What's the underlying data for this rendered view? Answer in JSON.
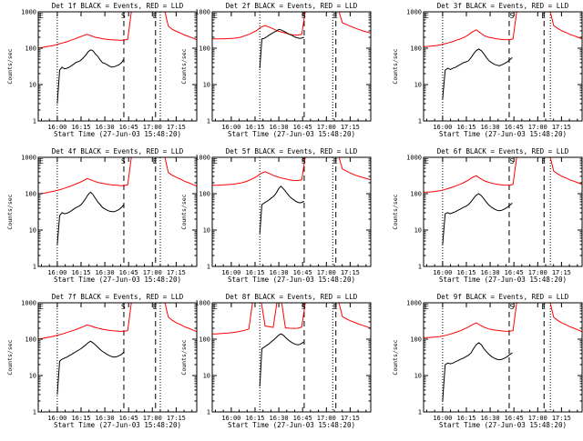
{
  "chart_data": {
    "type": "line",
    "layout": "3x3 grid of line plots",
    "yscale": "log",
    "ylim": [
      1,
      1000
    ],
    "yticks": [
      "1",
      "10",
      "100",
      "1000"
    ],
    "xticks": [
      "16:00",
      "16:15",
      "16:30",
      "16:45",
      "17:00",
      "17:15"
    ],
    "xtick_minutes": [
      0,
      15,
      30,
      45,
      60,
      75
    ],
    "xlim_minutes": [
      -12,
      88
    ],
    "ylabel": "Counts/sec",
    "xlabel": "Start Time (27-Jun-03 15:48:20)",
    "series_names": [
      "Events",
      "LLD"
    ],
    "colors": {
      "events": "#000000",
      "lld": "#ff0000",
      "lines": "#000000"
    },
    "markers": {
      "eclipse": "E",
      "saa": "S"
    },
    "panels": [
      {
        "title": "Det 1f BLACK = Events, RED = LLD",
        "dotted_minutes": [
          0,
          65
        ],
        "dashed_minutes": [
          42,
          62
        ],
        "marker_minutes": {
          "eclipse": -12,
          "saa": 42,
          "eclipse_end": 62
        },
        "events": {
          "start": 0,
          "end": 42,
          "values": [
            3,
            25,
            30,
            27,
            28,
            30,
            33,
            37,
            41,
            43,
            47,
            55,
            65,
            80,
            90,
            85,
            70,
            60,
            48,
            40,
            38,
            35,
            32,
            30,
            31,
            33,
            35,
            40,
            50
          ]
        },
        "lld": {
          "start": -12,
          "end": 88,
          "values": [
            100,
            105,
            110,
            115,
            120,
            130,
            140,
            150,
            165,
            180,
            200,
            220,
            240,
            220,
            200,
            190,
            180,
            175,
            170,
            168,
            166,
            165,
            175,
            1200,
            1200,
            1200,
            1200,
            1200,
            1200,
            1200,
            1200,
            1200,
            400,
            330,
            290,
            260,
            230,
            210,
            190,
            170
          ]
        }
      },
      {
        "title": "Det 2f BLACK = Events, RED = LLD",
        "dotted_minutes": [
          18,
          64
        ],
        "dashed_minutes": [
          46,
          66
        ],
        "marker_minutes": {
          "eclipse": -12,
          "saa": 46,
          "eclipse_end": 66
        },
        "events": {
          "start": 18,
          "end": 46,
          "values": [
            28,
            180,
            185,
            200,
            220,
            240,
            260,
            280,
            300,
            330,
            320,
            300,
            280,
            260,
            240,
            230,
            210,
            200,
            190,
            185,
            190,
            200
          ]
        },
        "lld": {
          "start": -12,
          "end": 88,
          "values": [
            180,
            180,
            180,
            182,
            184,
            186,
            190,
            200,
            220,
            240,
            270,
            310,
            380,
            420,
            380,
            340,
            300,
            280,
            260,
            240,
            230,
            230,
            240,
            1200,
            1200,
            1200,
            1200,
            1200,
            1200,
            1200,
            1200,
            1200,
            500,
            450,
            400,
            360,
            330,
            300,
            280,
            260
          ]
        }
      },
      {
        "title": "Det 3f BLACK = Events, RED = LLD",
        "dotted_minutes": [
          0,
          68
        ],
        "dashed_minutes": [
          42,
          64
        ],
        "marker_minutes": {
          "eclipse": -12,
          "saa": 44,
          "eclipse_end": 64
        },
        "events": {
          "start": 0,
          "end": 44,
          "values": [
            4,
            25,
            28,
            26,
            28,
            30,
            33,
            36,
            40,
            42,
            45,
            55,
            70,
            85,
            95,
            85,
            70,
            55,
            45,
            40,
            36,
            34,
            33,
            35,
            38,
            42,
            48,
            55
          ]
        },
        "lld": {
          "start": -12,
          "end": 88,
          "values": [
            110,
            112,
            115,
            118,
            122,
            130,
            140,
            150,
            165,
            180,
            200,
            230,
            280,
            320,
            260,
            220,
            200,
            190,
            180,
            175,
            172,
            170,
            180,
            1200,
            1200,
            1200,
            1200,
            1200,
            1200,
            1200,
            1200,
            1200,
            420,
            350,
            300,
            270,
            240,
            220,
            200,
            180
          ]
        }
      },
      {
        "title": "Det 4f BLACK = Events, RED = LLD",
        "dotted_minutes": [
          0,
          65
        ],
        "dashed_minutes": [
          42,
          62
        ],
        "marker_minutes": {
          "eclipse": -12,
          "saa": 42,
          "eclipse_end": 62
        },
        "events": {
          "start": 0,
          "end": 42,
          "values": [
            4,
            25,
            30,
            28,
            29,
            31,
            34,
            38,
            42,
            45,
            50,
            60,
            75,
            95,
            110,
            95,
            75,
            60,
            50,
            42,
            38,
            35,
            33,
            32,
            32,
            34,
            37,
            42,
            50
          ]
        },
        "lld": {
          "start": -12,
          "end": 88,
          "values": [
            100,
            102,
            106,
            112,
            118,
            126,
            136,
            148,
            162,
            180,
            200,
            225,
            260,
            240,
            215,
            200,
            190,
            182,
            176,
            172,
            168,
            166,
            175,
            1200,
            1200,
            1200,
            1200,
            1200,
            1200,
            1200,
            1200,
            1200,
            380,
            320,
            280,
            250,
            220,
            200,
            180,
            160
          ]
        }
      },
      {
        "title": "Det 5f BLACK = Events, RED = LLD",
        "dotted_minutes": [
          18,
          64
        ],
        "dashed_minutes": [
          46,
          66
        ],
        "marker_minutes": {
          "eclipse": -12,
          "saa": 46,
          "eclipse_end": 66
        },
        "events": {
          "start": 18,
          "end": 46,
          "values": [
            8,
            50,
            55,
            60,
            65,
            72,
            80,
            90,
            110,
            140,
            160,
            140,
            120,
            100,
            85,
            75,
            68,
            62,
            58,
            56,
            58,
            62
          ]
        },
        "lld": {
          "start": -12,
          "end": 88,
          "values": [
            170,
            170,
            172,
            175,
            178,
            182,
            188,
            196,
            210,
            230,
            260,
            300,
            360,
            400,
            360,
            320,
            290,
            270,
            255,
            240,
            232,
            230,
            240,
            1200,
            1200,
            1200,
            1200,
            1200,
            1200,
            1200,
            1200,
            1200,
            480,
            420,
            370,
            330,
            300,
            280,
            260,
            240
          ]
        }
      },
      {
        "title": "Det 6f BLACK = Events, RED = LLD",
        "dotted_minutes": [
          0,
          68
        ],
        "dashed_minutes": [
          42,
          64
        ],
        "marker_minutes": {
          "eclipse": -12,
          "saa": 44,
          "eclipse_end": 64
        },
        "events": {
          "start": 0,
          "end": 44,
          "values": [
            4,
            28,
            30,
            28,
            30,
            32,
            35,
            38,
            42,
            45,
            50,
            60,
            75,
            90,
            100,
            88,
            72,
            58,
            48,
            42,
            38,
            35,
            34,
            35,
            38,
            42,
            48,
            55
          ]
        },
        "lld": {
          "start": -12,
          "end": 88,
          "values": [
            110,
            110,
            112,
            116,
            120,
            128,
            138,
            150,
            165,
            182,
            205,
            235,
            280,
            310,
            260,
            225,
            205,
            192,
            182,
            176,
            172,
            170,
            180,
            1200,
            1200,
            1200,
            1200,
            1200,
            1200,
            1200,
            1200,
            1200,
            420,
            350,
            300,
            270,
            240,
            220,
            200,
            180
          ]
        }
      },
      {
        "title": "Det 7f BLACK = Events, RED = LLD",
        "dotted_minutes": [
          0,
          65
        ],
        "dashed_minutes": [
          42,
          62
        ],
        "marker_minutes": {
          "eclipse": -12,
          "saa": 42,
          "eclipse_end": 62
        },
        "events": {
          "start": 0,
          "end": 42,
          "values": [
            3,
            25,
            28,
            30,
            32,
            35,
            38,
            42,
            46,
            50,
            55,
            62,
            70,
            80,
            88,
            80,
            70,
            60,
            52,
            46,
            42,
            38,
            35,
            33,
            32,
            33,
            35,
            38,
            45
          ]
        },
        "lld": {
          "start": -12,
          "end": 88,
          "values": [
            100,
            105,
            110,
            115,
            122,
            130,
            140,
            152,
            165,
            180,
            198,
            220,
            245,
            230,
            210,
            196,
            186,
            178,
            172,
            168,
            165,
            163,
            172,
            1200,
            1200,
            1200,
            1200,
            1200,
            1200,
            1200,
            1200,
            1200,
            400,
            330,
            280,
            250,
            220,
            200,
            180,
            160
          ]
        }
      },
      {
        "title": "Det 8f BLACK = Events, RED = LLD",
        "dotted_minutes": [
          18,
          64
        ],
        "dashed_minutes": [
          46,
          66
        ],
        "marker_minutes": {
          "eclipse": -12,
          "saa": 46,
          "eclipse_end": 66
        },
        "events": {
          "start": 18,
          "end": 46,
          "values": [
            5,
            55,
            60,
            66,
            72,
            80,
            90,
            100,
            115,
            130,
            140,
            130,
            115,
            100,
            90,
            82,
            76,
            72,
            70,
            72,
            78,
            85
          ]
        },
        "lld": {
          "start": -12,
          "end": 88,
          "values": [
            140,
            140,
            142,
            145,
            148,
            152,
            158,
            166,
            176,
            190,
            1200,
            1200,
            1200,
            230,
            220,
            210,
            1200,
            1200,
            205,
            200,
            198,
            200,
            215,
            1200,
            1200,
            1200,
            1200,
            1200,
            1200,
            1200,
            1200,
            1200,
            420,
            360,
            320,
            290,
            260,
            240,
            220,
            200
          ]
        }
      },
      {
        "title": "Det 9f BLACK = Events, RED = LLD",
        "dotted_minutes": [
          0,
          68
        ],
        "dashed_minutes": [
          42,
          64
        ],
        "marker_minutes": {
          "eclipse": -12,
          "saa": 44,
          "eclipse_end": 64
        },
        "events": {
          "start": 0,
          "end": 44,
          "values": [
            2,
            20,
            22,
            21,
            22,
            24,
            26,
            28,
            30,
            33,
            36,
            42,
            55,
            70,
            80,
            70,
            55,
            45,
            38,
            33,
            30,
            28,
            27,
            28,
            30,
            33,
            38,
            42
          ]
        },
        "lld": {
          "start": -12,
          "end": 88,
          "values": [
            110,
            110,
            112,
            115,
            118,
            124,
            132,
            142,
            155,
            170,
            190,
            215,
            250,
            280,
            240,
            210,
            192,
            182,
            175,
            170,
            166,
            164,
            172,
            1200,
            1200,
            1200,
            1200,
            1200,
            1200,
            1200,
            1200,
            1200,
            400,
            330,
            280,
            250,
            220,
            200,
            180,
            160
          ]
        }
      }
    ]
  }
}
